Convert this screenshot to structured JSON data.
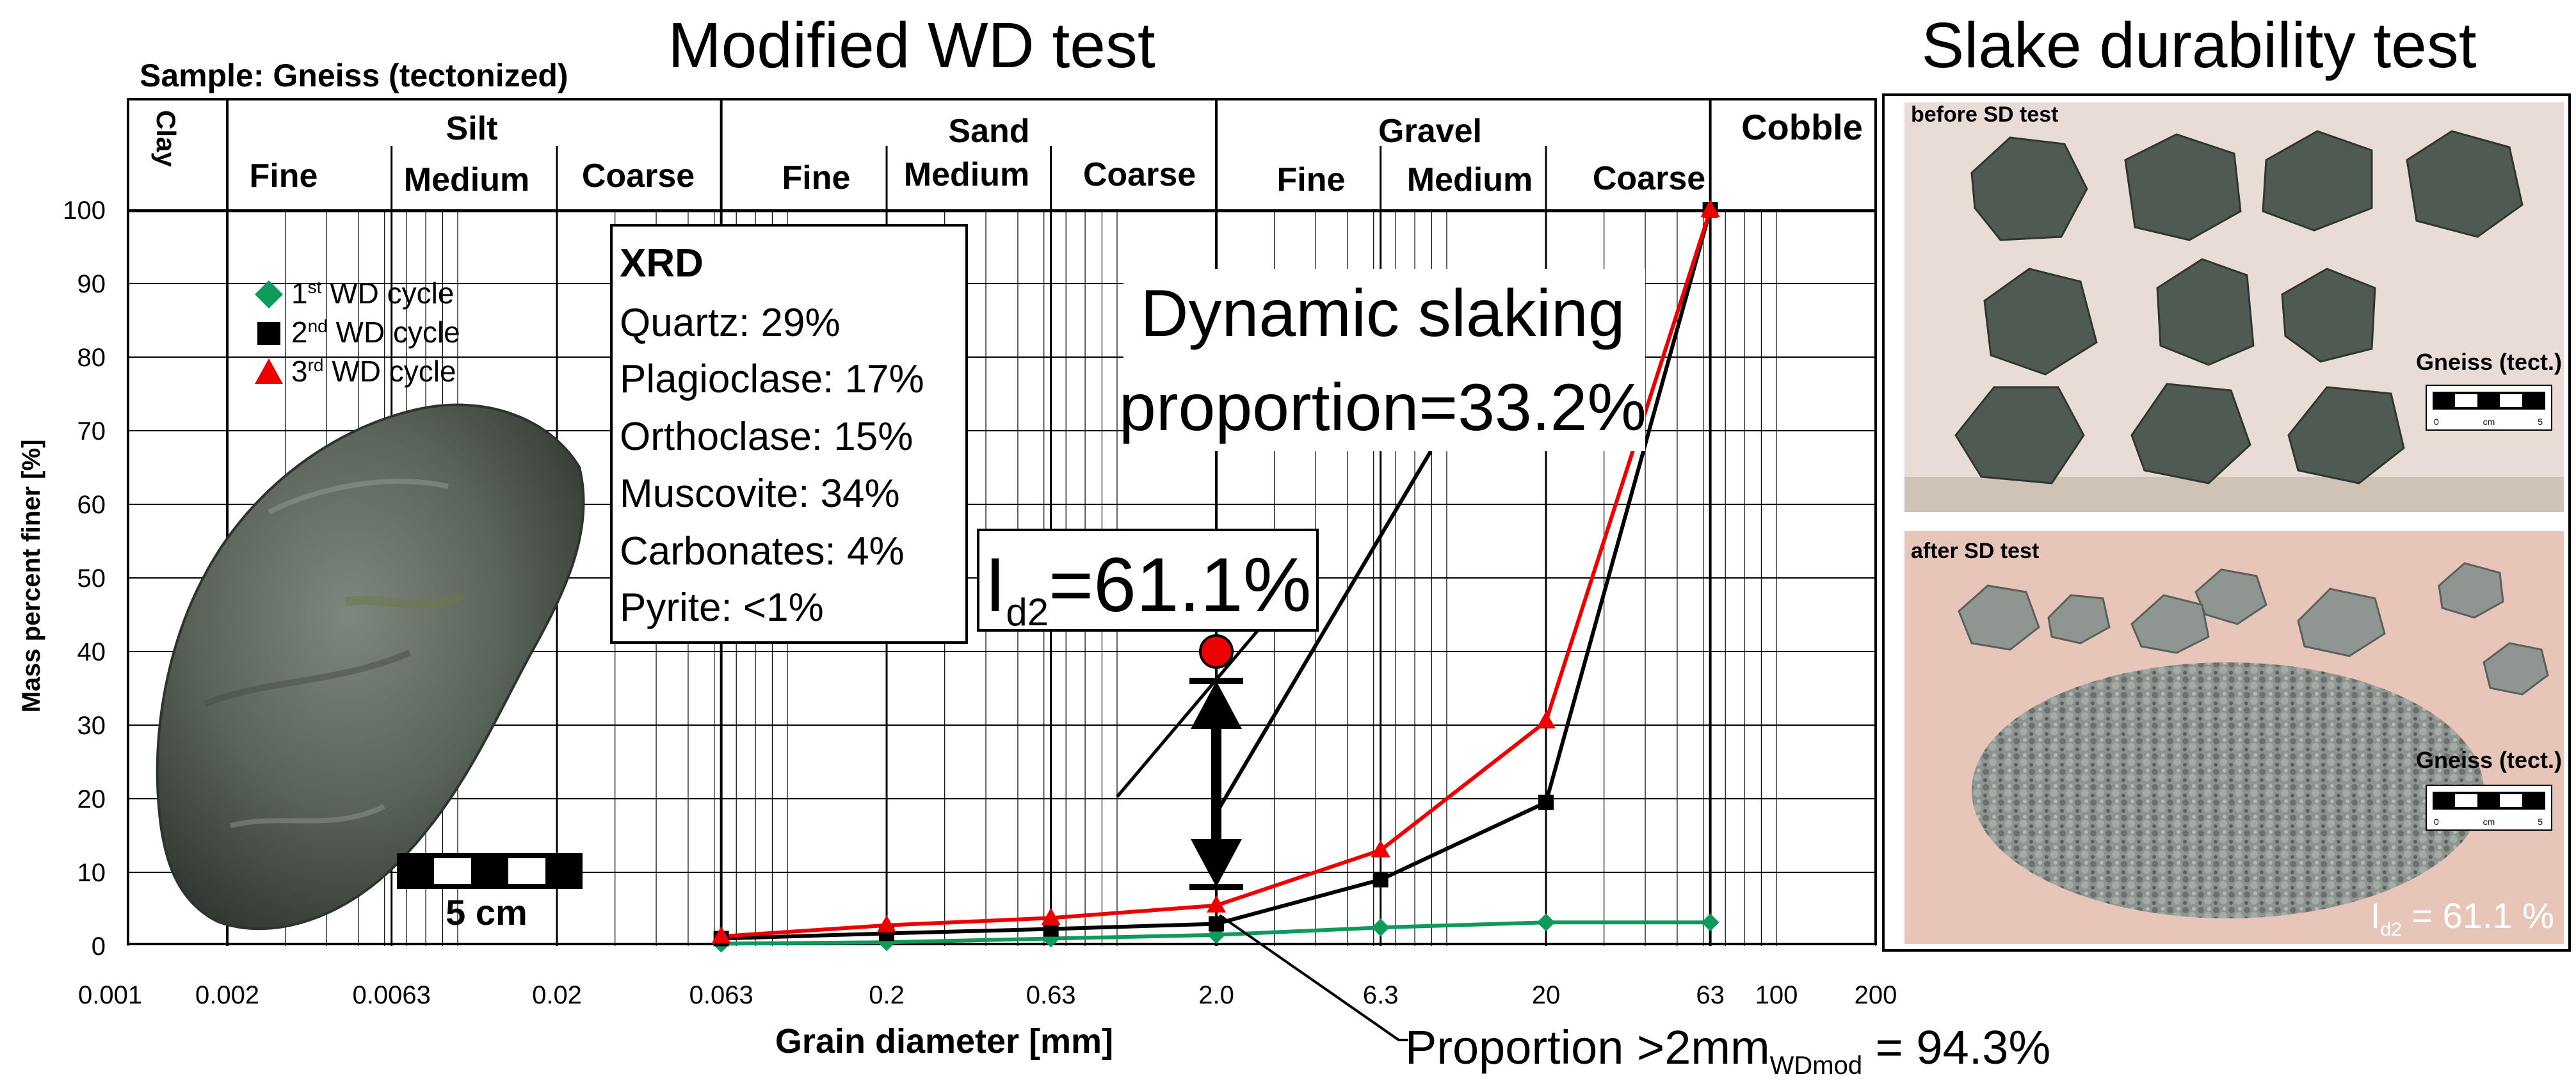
{
  "header": {
    "main_title": "Modified WD test",
    "sample_label": "Sample: Gneiss (tectonized)",
    "side_title": "Slake durability test"
  },
  "classes": {
    "clay": "Clay",
    "silt": "Silt",
    "sand": "Sand",
    "gravel": "Gravel",
    "cobble": "Cobble",
    "fine": "Fine",
    "medium": "Medium",
    "coarse": "Coarse"
  },
  "legend": {
    "items": [
      {
        "ord": "1",
        "sup": "st",
        "text": " WD cycle",
        "color": "#0e9a5a",
        "marker": "diamond"
      },
      {
        "ord": "2",
        "sup": "nd",
        "text": " WD cycle",
        "color": "#000000",
        "marker": "square"
      },
      {
        "ord": "3",
        "sup": "rd",
        "text": " WD cycle",
        "color": "#ee0000",
        "marker": "triangle"
      }
    ]
  },
  "xrd": {
    "title": "XRD",
    "lines": [
      "Quartz: 29%",
      "Plagioclase: 17%",
      "Orthoclase: 15%",
      "Muscovite: 34%",
      "Carbonates: 4%",
      "Pyrite: <1%"
    ]
  },
  "annotations": {
    "dynamic_line1": "Dynamic slaking",
    "dynamic_line2": "proportion=33.2%",
    "id2_main": "I",
    "id2_sub": "d2",
    "id2_value": "=61.1%",
    "proportion_main": "Proportion >2mm",
    "proportion_sub": "WDmod",
    "proportion_value": " = 94.3%"
  },
  "scale_bar": {
    "label": "5 cm"
  },
  "photos": {
    "before_label": "before SD test",
    "after_label": "after SD test",
    "gneiss_label": "Gneiss (tect.)",
    "ruler_left": "0",
    "ruler_mid": "cm",
    "ruler_right": "5",
    "id2_overlay_main": "I",
    "id2_overlay_sub": "d2",
    "id2_overlay_value": " = 61.1 %",
    "rock_color": "#5d6b62",
    "paper_before": "#e9dcd6",
    "paper_after": "#e7c6b9"
  },
  "chart_data": {
    "type": "line",
    "x_scale": "log",
    "xlim": [
      0.001,
      200
    ],
    "ylim": [
      0,
      100
    ],
    "xlabel": "Grain diameter [mm]",
    "ylabel": "Mass percent finer [%]",
    "x_ticks": [
      {
        "v": 0.001,
        "label": "0.001"
      },
      {
        "v": 0.002,
        "label": "0.002"
      },
      {
        "v": 0.0063,
        "label": "0.0063"
      },
      {
        "v": 0.02,
        "label": "0.02"
      },
      {
        "v": 0.063,
        "label": "0.063"
      },
      {
        "v": 0.2,
        "label": "0.2"
      },
      {
        "v": 0.63,
        "label": "0.63"
      },
      {
        "v": 2.0,
        "label": "2.0"
      },
      {
        "v": 6.3,
        "label": "6.3"
      },
      {
        "v": 20,
        "label": "20"
      },
      {
        "v": 63,
        "label": "63"
      },
      {
        "v": 100,
        "label": "100"
      },
      {
        "v": 200,
        "label": "200"
      }
    ],
    "y_ticks": [
      {
        "v": 0,
        "label": "0"
      },
      {
        "v": 10,
        "label": "10"
      },
      {
        "v": 20,
        "label": "20"
      },
      {
        "v": 30,
        "label": "30"
      },
      {
        "v": 40,
        "label": "40"
      },
      {
        "v": 50,
        "label": "50"
      },
      {
        "v": 60,
        "label": "60"
      },
      {
        "v": 70,
        "label": "70"
      },
      {
        "v": 80,
        "label": "80"
      },
      {
        "v": 90,
        "label": "90"
      },
      {
        "v": 100,
        "label": "100"
      }
    ],
    "class_boundaries": [
      0.002,
      0.0063,
      0.02,
      0.063,
      0.2,
      0.63,
      2.0,
      6.3,
      20,
      63
    ],
    "main_boundaries": [
      0.002,
      0.063,
      2.0,
      63
    ],
    "series": [
      {
        "name": "1st WD cycle",
        "color": "#0e9a5a",
        "marker": "diamond",
        "x": [
          0.063,
          0.2,
          0.63,
          2.0,
          6.3,
          20,
          63
        ],
        "y": [
          0.3,
          0.5,
          1.0,
          1.5,
          2.5,
          3.2,
          3.2
        ]
      },
      {
        "name": "2nd WD cycle",
        "color": "#000000",
        "marker": "square",
        "x": [
          0.063,
          0.2,
          0.63,
          2.0,
          6.3,
          20,
          63
        ],
        "y": [
          1.0,
          1.7,
          2.3,
          3.0,
          9.0,
          19.5,
          100
        ]
      },
      {
        "name": "3rd WD cycle",
        "color": "#ee0000",
        "marker": "triangle",
        "x": [
          0.063,
          0.2,
          0.63,
          2.0,
          6.3,
          20,
          63
        ],
        "y": [
          1.3,
          2.8,
          3.8,
          5.5,
          13.0,
          30.5,
          100
        ]
      }
    ],
    "id2_marker": {
      "x": 2.0,
      "y": 40
    },
    "range_arrow": {
      "x": 2.0,
      "y_top": 36,
      "y_bottom": 8
    }
  }
}
